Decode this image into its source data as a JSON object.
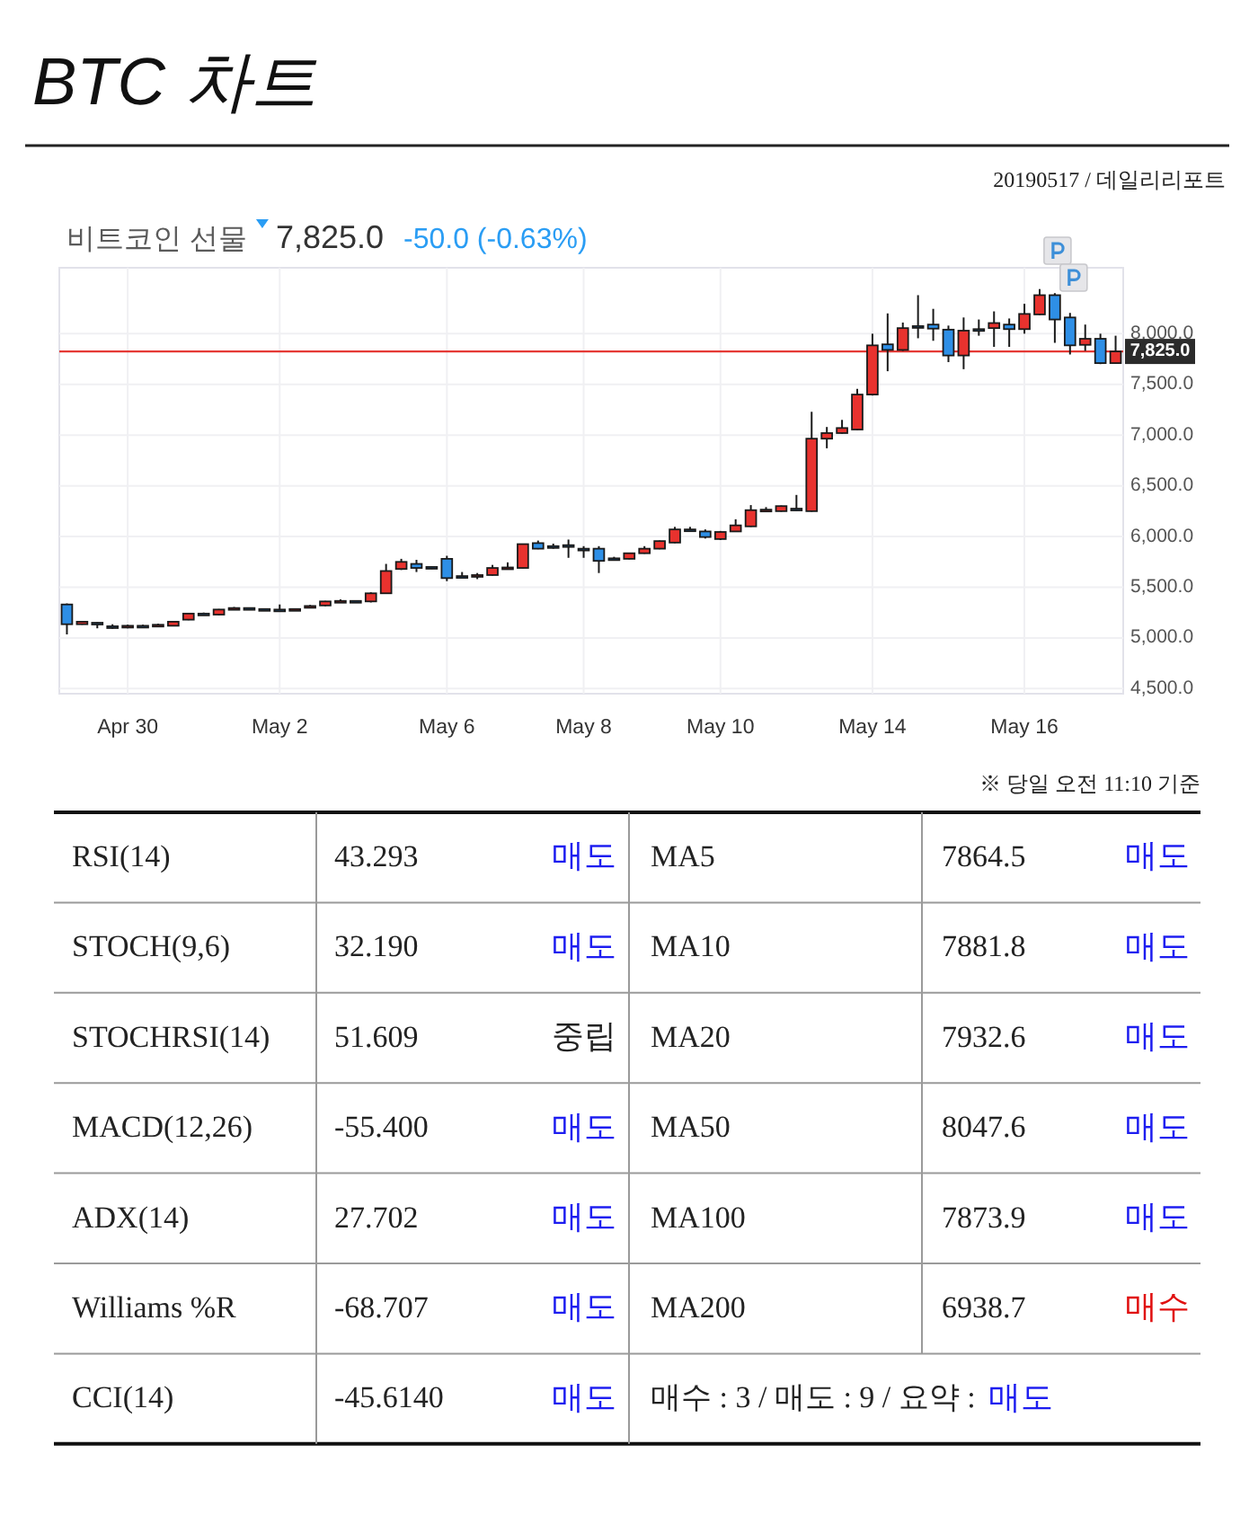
{
  "chart_data": [
    {
      "type": "candlestick",
      "title": "BTC 차트",
      "subtitle": "20190517 / 데일리리포트",
      "annotations": [
        "비트코인 선물",
        "7,825.0",
        "-50.0 (-0.63%)"
      ],
      "categories": [
        null,
        null,
        null,
        null,
        "Apr 30",
        null,
        null,
        null,
        null,
        null,
        null,
        null,
        null,
        null,
        "May 2",
        null,
        null,
        null,
        null,
        null,
        null,
        null,
        null,
        null,
        null,
        "May 6",
        null,
        null,
        null,
        null,
        null,
        null,
        null,
        null,
        "May 8",
        null,
        null,
        null,
        null,
        null,
        null,
        null,
        null,
        "May 10",
        null,
        null,
        null,
        null,
        null,
        null,
        null,
        null,
        null,
        "May 14",
        null,
        null,
        null,
        null,
        null,
        null,
        null,
        null,
        null,
        "May 16",
        null,
        null,
        null,
        null,
        null,
        null
      ],
      "ohlc": [
        [
          5330,
          5340,
          5035,
          5135
        ],
        [
          5135,
          5165,
          5130,
          5160
        ],
        [
          5150,
          5155,
          5095,
          5145
        ],
        [
          5115,
          5135,
          5090,
          5115
        ],
        [
          5115,
          5130,
          5095,
          5120
        ],
        [
          5120,
          5130,
          5100,
          5115
        ],
        [
          5120,
          5140,
          5115,
          5130
        ],
        [
          5120,
          5165,
          5115,
          5160
        ],
        [
          5180,
          5245,
          5175,
          5240
        ],
        [
          5240,
          5250,
          5230,
          5235
        ],
        [
          5230,
          5285,
          5225,
          5280
        ],
        [
          5290,
          5305,
          5285,
          5295
        ],
        [
          5295,
          5300,
          5280,
          5290
        ],
        [
          5285,
          5290,
          5275,
          5280
        ],
        [
          5280,
          5330,
          5275,
          5280
        ],
        [
          5280,
          5290,
          5275,
          5285
        ],
        [
          5310,
          5325,
          5305,
          5315
        ],
        [
          5320,
          5365,
          5315,
          5360
        ],
        [
          5360,
          5380,
          5355,
          5365
        ],
        [
          5365,
          5370,
          5360,
          5365
        ],
        [
          5360,
          5450,
          5350,
          5440
        ],
        [
          5440,
          5730,
          5435,
          5660
        ],
        [
          5680,
          5780,
          5670,
          5750
        ],
        [
          5730,
          5770,
          5650,
          5690
        ],
        [
          5700,
          5705,
          5680,
          5690
        ],
        [
          5780,
          5810,
          5560,
          5590
        ],
        [
          5610,
          5650,
          5600,
          5605
        ],
        [
          5615,
          5640,
          5580,
          5620
        ],
        [
          5620,
          5720,
          5615,
          5690
        ],
        [
          5690,
          5745,
          5685,
          5695
        ],
        [
          5690,
          5930,
          5685,
          5925
        ],
        [
          5935,
          5960,
          5875,
          5880
        ],
        [
          5905,
          5930,
          5880,
          5900
        ],
        [
          5915,
          5970,
          5790,
          5910
        ],
        [
          5880,
          5905,
          5790,
          5880
        ],
        [
          5880,
          5905,
          5640,
          5760
        ],
        [
          5785,
          5800,
          5770,
          5780
        ],
        [
          5780,
          5840,
          5775,
          5835
        ],
        [
          5835,
          5905,
          5830,
          5880
        ],
        [
          5880,
          5960,
          5875,
          5955
        ],
        [
          5940,
          6095,
          5935,
          6070
        ],
        [
          6070,
          6095,
          6050,
          6065
        ],
        [
          6050,
          6070,
          5980,
          5995
        ],
        [
          5975,
          6055,
          5965,
          6045
        ],
        [
          6050,
          6170,
          6045,
          6110
        ],
        [
          6100,
          6310,
          6095,
          6260
        ],
        [
          6260,
          6290,
          6255,
          6265
        ],
        [
          6250,
          6305,
          6245,
          6300
        ],
        [
          6275,
          6410,
          6255,
          6270
        ],
        [
          6250,
          7230,
          6245,
          6965
        ],
        [
          6965,
          7080,
          6870,
          7020
        ],
        [
          7020,
          7150,
          7015,
          7070
        ],
        [
          7055,
          7455,
          7050,
          7400
        ],
        [
          7400,
          8000,
          7390,
          7885
        ],
        [
          7895,
          8200,
          7630,
          7840
        ],
        [
          7840,
          8110,
          7830,
          8055
        ],
        [
          8075,
          8380,
          7955,
          8065
        ],
        [
          8090,
          8245,
          7930,
          8050
        ],
        [
          8040,
          8080,
          7720,
          7785
        ],
        [
          7785,
          8160,
          7650,
          8030
        ],
        [
          8045,
          8140,
          7980,
          8040
        ],
        [
          8055,
          8220,
          7870,
          8105
        ],
        [
          8090,
          8150,
          7870,
          8045
        ],
        [
          8045,
          8295,
          8000,
          8195
        ],
        [
          8190,
          8440,
          8185,
          8380
        ],
        [
          8380,
          8400,
          7910,
          8140
        ],
        [
          8160,
          8205,
          7795,
          7885
        ],
        [
          7890,
          8090,
          7830,
          7950
        ],
        [
          7950,
          8000,
          7700,
          7710
        ],
        [
          7710,
          7980,
          7705,
          7825
        ]
      ],
      "colors": [
        "#2e8fe6",
        "#e8322e",
        "#2e8fe6",
        "#2e8fe6",
        "#e8322e",
        "#2e8fe6",
        "#e8322e",
        "#e8322e",
        "#e8322e",
        "#2e8fe6",
        "#e8322e",
        "#e8322e",
        "#2e8fe6",
        "#2e8fe6",
        "#2e8fe6",
        "#e8322e",
        "#e8322e",
        "#e8322e",
        "#e8322e",
        "#2e8fe6",
        "#e8322e",
        "#e8322e",
        "#e8322e",
        "#2e8fe6",
        "#2e8fe6",
        "#2e8fe6",
        "#2e8fe6",
        "#e8322e",
        "#e8322e",
        "#e8322e",
        "#e8322e",
        "#2e8fe6",
        "#2e8fe6",
        "#2e8fe6",
        "#2e8fe6",
        "#2e8fe6",
        "#2e8fe6",
        "#e8322e",
        "#e8322e",
        "#e8322e",
        "#e8322e",
        "#2e8fe6",
        "#2e8fe6",
        "#e8322e",
        "#e8322e",
        "#e8322e",
        "#e8322e",
        "#e8322e",
        "#2e8fe6",
        "#e8322e",
        "#e8322e",
        "#e8322e",
        "#e8322e",
        "#e8322e",
        "#2e8fe6",
        "#e8322e",
        "#2e8fe6",
        "#2e8fe6",
        "#2e8fe6",
        "#e8322e",
        "#2e8fe6",
        "#e8322e",
        "#2e8fe6",
        "#e8322e",
        "#e8322e",
        "#2e8fe6",
        "#2e8fe6",
        "#e8322e",
        "#2e8fe6",
        "#e8322e"
      ],
      "ylim": [
        4450,
        8650
      ],
      "yticks": [
        {
          "value": 4500,
          "label": "4,500.0"
        },
        {
          "value": 5000,
          "label": "5,000.0"
        },
        {
          "value": 5500,
          "label": "5,500.0"
        },
        {
          "value": 6000,
          "label": "6,000.0"
        },
        {
          "value": 6500,
          "label": "6,500.0"
        },
        {
          "value": 7000,
          "label": "7,000.0"
        },
        {
          "value": 7500,
          "label": "7,500.0"
        },
        {
          "value": 8000,
          "label": "8,000.0"
        }
      ],
      "grid": true,
      "ref_lines": [
        {
          "axis": "y",
          "value": 7825,
          "label": "7,825.0",
          "color": "#e53935"
        }
      ]
    },
    {
      "type": "other",
      "annotations": [
        "※ 당일 오전 11:10 기준",
        "RSI(14)",
        "43.293",
        "매도",
        "MA5",
        "7864.5",
        "매도",
        "STOCH(9,6)",
        "32.190",
        "매도",
        "MA10",
        "7881.8",
        "매도",
        "STOCHRSI(14)",
        "51.609",
        "중립",
        "MA20",
        "7932.6",
        "매도",
        "MACD(12,26)",
        "-55.400",
        "매도",
        "MA50",
        "8047.6",
        "매도",
        "ADX(14)",
        "27.702",
        "매도",
        "MA100",
        "7873.9",
        "매도",
        "Williams %R",
        "-68.707",
        "매도",
        "MA200",
        "6938.7",
        "매수",
        "CCI(14)",
        "-45.6140",
        "매도",
        "매수 : 3 / 매도 : 9 / 요약 :",
        "매도"
      ],
      "colors": [
        "#222222",
        "#222222",
        "#222222",
        "#1d1df0",
        "#222222",
        "#222222",
        "#1d1df0",
        "#222222",
        "#222222",
        "#1d1df0",
        "#222222",
        "#222222",
        "#1d1df0",
        "#222222",
        "#222222",
        "#222222",
        "#222222",
        "#222222",
        "#1d1df0",
        "#222222",
        "#222222",
        "#1d1df0",
        "#222222",
        "#222222",
        "#1d1df0",
        "#222222",
        "#222222",
        "#1d1df0",
        "#222222",
        "#222222",
        "#1d1df0",
        "#222222",
        "#222222",
        "#1d1df0",
        "#222222",
        "#222222",
        "#e01010",
        "#222222",
        "#222222",
        "#1d1df0",
        "#222222",
        "#1d1df0"
      ]
    }
  ]
}
